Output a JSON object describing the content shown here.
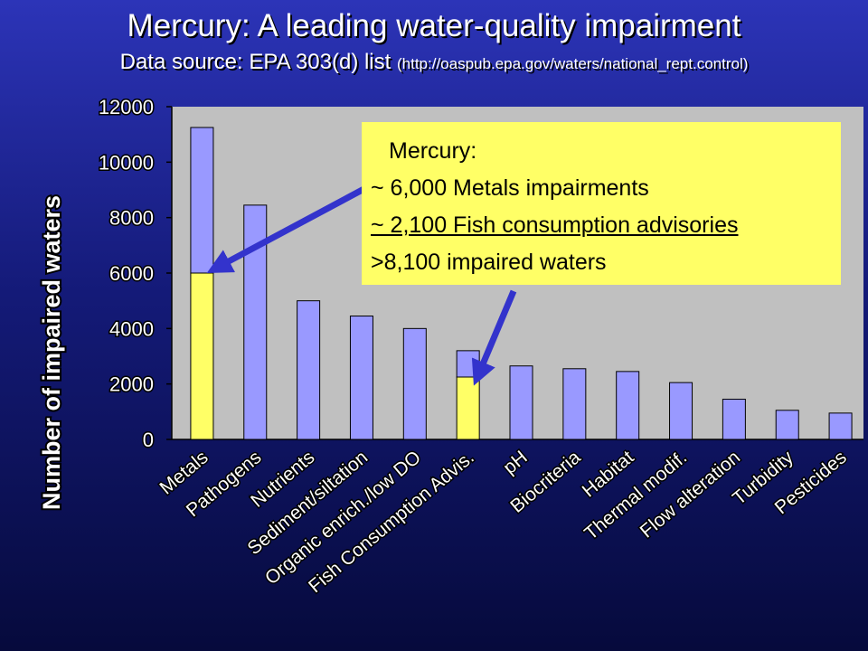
{
  "slide": {
    "title": "Mercury: A leading water-quality impairment",
    "subtitle_main": "Data source: EPA 303(d) list",
    "subtitle_url": "(http://oaspub.epa.gov/waters/national_rept.control)"
  },
  "callout": {
    "heading": "Mercury:",
    "line1": "~ 6,000 Metals impairments",
    "line2": "~ 2,100 Fish consumption advisories",
    "line3": ">8,100 impaired waters"
  },
  "chart_data": {
    "type": "bar",
    "stacked": true,
    "ylabel": "Number of impaired waters",
    "ylim": [
      0,
      12000
    ],
    "yticks": [
      0,
      2000,
      4000,
      6000,
      8000,
      10000,
      12000
    ],
    "grid": false,
    "categories": [
      "Metals",
      "Pathogens",
      "Nutrients",
      "Sediment/siltation",
      "Organic enrich./low DO",
      "Fish Consumption Advis.",
      "pH",
      "Biocriteria",
      "Habitat",
      "Thermal modif.",
      "Flow alteration",
      "Turbidity",
      "Pesticides"
    ],
    "series": [
      {
        "role": "mercury",
        "values": [
          6000,
          0,
          0,
          0,
          0,
          2250,
          0,
          0,
          0,
          0,
          0,
          0,
          0
        ]
      },
      {
        "role": "other",
        "values": [
          5250,
          8450,
          5000,
          4450,
          4000,
          950,
          2650,
          2550,
          2450,
          2050,
          1450,
          1050,
          950
        ]
      }
    ],
    "colors": {
      "mercury": "#ffff66",
      "other": "#9999ff",
      "plot_bg": "#c0c0c0",
      "arrow": "#3333cc"
    }
  }
}
